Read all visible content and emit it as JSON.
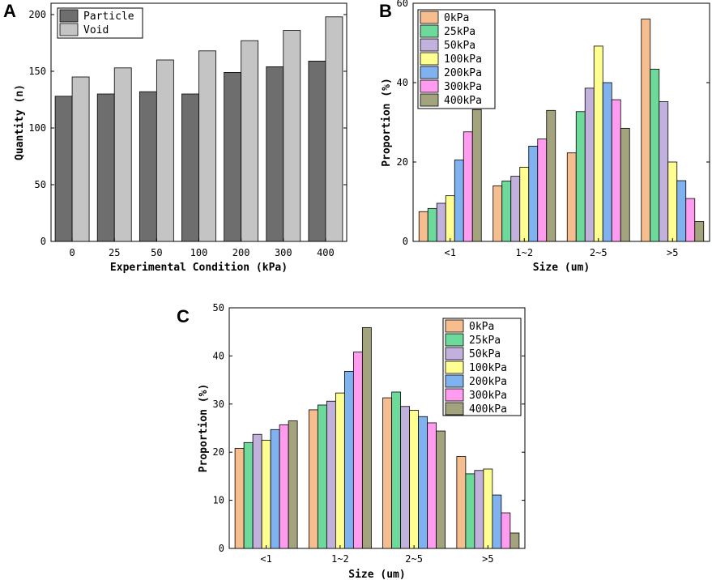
{
  "panels": {
    "a": "A",
    "b": "B",
    "c": "C"
  },
  "chart_data": [
    {
      "id": "A",
      "type": "bar",
      "title": "",
      "xlabel": "Experimental Condition (kPa)",
      "ylabel": "Quantity (n)",
      "ylim": [
        0,
        210
      ],
      "yticks": [
        0,
        50,
        100,
        150,
        200
      ],
      "categories": [
        "0",
        "25",
        "50",
        "100",
        "200",
        "300",
        "400"
      ],
      "series": [
        {
          "name": "Particle",
          "color": "#6e6e6e",
          "values": [
            128,
            130,
            132,
            130,
            149,
            154,
            159
          ]
        },
        {
          "name": "Void",
          "color": "#c4c4c4",
          "values": [
            145,
            153,
            160,
            168,
            177,
            186,
            198
          ]
        }
      ],
      "legend": "top-left"
    },
    {
      "id": "B",
      "type": "bar",
      "title": "",
      "xlabel": "Size (um)",
      "ylabel": "Proportion (%)",
      "ylim": [
        0,
        60
      ],
      "yticks": [
        0,
        20,
        40,
        60
      ],
      "categories": [
        "<1",
        "1~2",
        "2~5",
        ">5"
      ],
      "series": [
        {
          "name": "0kPa",
          "color": "#f6bd8f",
          "values": [
            7.5,
            14,
            22.3,
            56
          ]
        },
        {
          "name": "25kPa",
          "color": "#6dd99b",
          "values": [
            8.3,
            15.2,
            32.7,
            43.4
          ]
        },
        {
          "name": "50kPa",
          "color": "#c2b1dd",
          "values": [
            9.6,
            16.4,
            38.6,
            35.2
          ]
        },
        {
          "name": "100kPa",
          "color": "#ffff91",
          "values": [
            11.5,
            18.7,
            49.2,
            20
          ]
        },
        {
          "name": "200kPa",
          "color": "#7fb2ef",
          "values": [
            20.5,
            24,
            40,
            15.3
          ]
        },
        {
          "name": "300kPa",
          "color": "#ff9cf0",
          "values": [
            27.6,
            25.8,
            35.7,
            10.8
          ]
        },
        {
          "name": "400kPa",
          "color": "#a3a37d",
          "values": [
            33.2,
            33,
            28.5,
            5
          ]
        }
      ],
      "legend": "top-left"
    },
    {
      "id": "C",
      "type": "bar",
      "title": "",
      "xlabel": "Size (um)",
      "ylabel": "Proportion (%)",
      "ylim": [
        0,
        50
      ],
      "yticks": [
        0,
        10,
        20,
        30,
        40,
        50
      ],
      "categories": [
        "<1",
        "1~2",
        "2~5",
        ">5"
      ],
      "series": [
        {
          "name": "0kPa",
          "color": "#f6bd8f",
          "values": [
            20.8,
            28.8,
            31.3,
            19.1
          ]
        },
        {
          "name": "25kPa",
          "color": "#6dd99b",
          "values": [
            22,
            29.8,
            32.5,
            15.5
          ]
        },
        {
          "name": "50kPa",
          "color": "#c2b1dd",
          "values": [
            23.7,
            30.6,
            29.5,
            16.2
          ]
        },
        {
          "name": "100kPa",
          "color": "#ffff91",
          "values": [
            22.5,
            32.3,
            28.7,
            16.5
          ]
        },
        {
          "name": "200kPa",
          "color": "#7fb2ef",
          "values": [
            24.7,
            36.8,
            27.4,
            11.1
          ]
        },
        {
          "name": "300kPa",
          "color": "#ff9cf0",
          "values": [
            25.7,
            40.8,
            26.1,
            7.4
          ]
        },
        {
          "name": "400kPa",
          "color": "#a3a37d",
          "values": [
            26.5,
            45.9,
            24.4,
            3.2
          ]
        }
      ],
      "legend": "top-right"
    }
  ]
}
